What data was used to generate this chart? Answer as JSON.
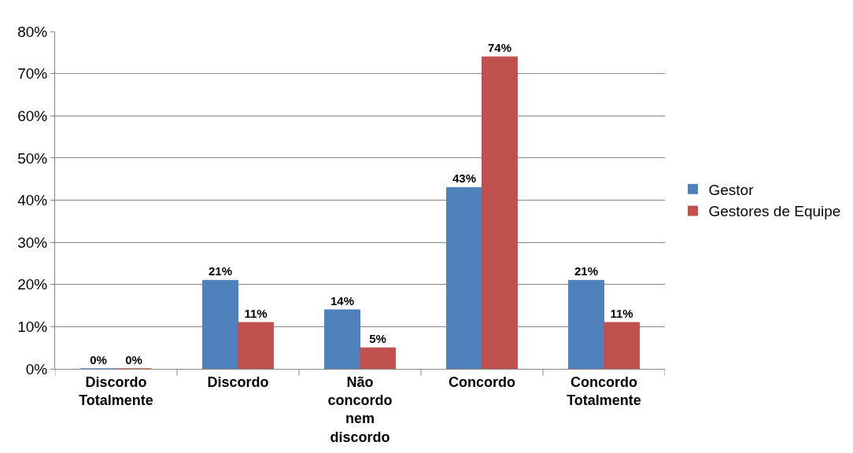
{
  "chart_data": {
    "type": "bar",
    "categories": [
      "Discordo Totalmente",
      "Discordo",
      "Não concordo nem discordo",
      "Concordo",
      "Concordo Totalmente"
    ],
    "series": [
      {
        "name": "Gestor",
        "color": "#4f81bd",
        "values": [
          0,
          21,
          14,
          43,
          21
        ],
        "value_labels": [
          "0%",
          "21%",
          "14%",
          "43%",
          "21%"
        ]
      },
      {
        "name": "Gestores de Equipe",
        "color": "#c0504d",
        "values": [
          0,
          11,
          5,
          74,
          11
        ],
        "value_labels": [
          "0%",
          "11%",
          "5%",
          "74%",
          "11%"
        ]
      }
    ],
    "ylim": [
      0,
      80
    ],
    "yticks": [
      {
        "value": 0,
        "label": "0%"
      },
      {
        "value": 10,
        "label": "10%"
      },
      {
        "value": 20,
        "label": "20%"
      },
      {
        "value": 30,
        "label": "30%"
      },
      {
        "value": 40,
        "label": "40%"
      },
      {
        "value": 50,
        "label": "50%"
      },
      {
        "value": 60,
        "label": "60%"
      },
      {
        "value": 70,
        "label": "70%"
      },
      {
        "value": 80,
        "label": "80%"
      }
    ],
    "grid": "y",
    "legend": "right"
  }
}
